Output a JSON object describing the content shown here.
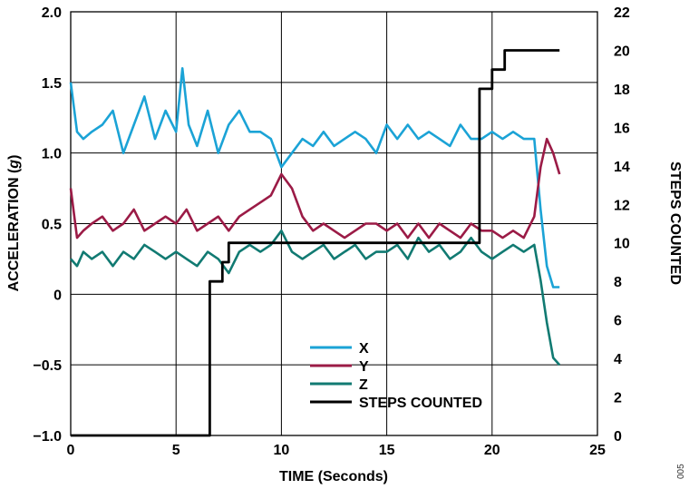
{
  "chart_data": {
    "type": "line",
    "xlabel": "TIME (Seconds)",
    "ylabel_left": [
      "ACCELERATION (",
      "g",
      ")"
    ],
    "ylabel_right": "STEPS COUNTED",
    "xlim": [
      0,
      25
    ],
    "ylim_left": [
      -1.0,
      2.0
    ],
    "ylim_right": [
      0,
      22
    ],
    "x_ticks": [
      "0",
      "5",
      "10",
      "15",
      "20",
      "25"
    ],
    "y_left_ticks": [
      "2.0",
      "1.5",
      "1.0",
      "0.5",
      "0",
      "−0.5",
      "−1.0"
    ],
    "y_right_ticks": [
      "22",
      "20",
      "18",
      "16",
      "14",
      "12",
      "10",
      "8",
      "6",
      "4",
      "2",
      "0"
    ],
    "grid": true,
    "legend_position": "bottom-center",
    "figure_id": "005",
    "series": [
      {
        "name": "X",
        "axis": "left",
        "color": "#1ba3d6",
        "x": [
          0,
          0.3,
          0.6,
          1.0,
          1.5,
          2.0,
          2.5,
          3.0,
          3.5,
          4.0,
          4.5,
          5.0,
          5.3,
          5.6,
          6.0,
          6.5,
          7.0,
          7.5,
          8.0,
          8.5,
          9.0,
          9.5,
          10.0,
          10.5,
          11.0,
          11.5,
          12.0,
          12.5,
          13.0,
          13.5,
          14.0,
          14.5,
          15.0,
          15.5,
          16.0,
          16.5,
          17.0,
          17.5,
          18.0,
          18.5,
          19.0,
          19.5,
          20.0,
          20.5,
          21.0,
          21.5,
          22.0,
          22.3,
          22.6,
          22.9,
          23.2
        ],
        "y": [
          1.5,
          1.15,
          1.1,
          1.15,
          1.2,
          1.3,
          1.0,
          1.2,
          1.4,
          1.1,
          1.3,
          1.15,
          1.6,
          1.2,
          1.05,
          1.3,
          1.0,
          1.2,
          1.3,
          1.15,
          1.15,
          1.1,
          0.9,
          1.0,
          1.1,
          1.05,
          1.15,
          1.05,
          1.1,
          1.15,
          1.1,
          1.0,
          1.2,
          1.1,
          1.2,
          1.1,
          1.15,
          1.1,
          1.05,
          1.2,
          1.1,
          1.1,
          1.15,
          1.1,
          1.15,
          1.1,
          1.1,
          0.6,
          0.2,
          0.05,
          0.05
        ]
      },
      {
        "name": "Y",
        "axis": "left",
        "color": "#9b1b46",
        "x": [
          0,
          0.3,
          0.6,
          1.0,
          1.5,
          2.0,
          2.5,
          3.0,
          3.5,
          4.0,
          4.5,
          5.0,
          5.5,
          6.0,
          6.5,
          7.0,
          7.5,
          8.0,
          8.5,
          9.0,
          9.5,
          10.0,
          10.5,
          11.0,
          11.5,
          12.0,
          12.5,
          13.0,
          13.5,
          14.0,
          14.5,
          15.0,
          15.5,
          16.0,
          16.5,
          17.0,
          17.5,
          18.0,
          18.5,
          19.0,
          19.5,
          20.0,
          20.5,
          21.0,
          21.5,
          22.0,
          22.3,
          22.6,
          22.9,
          23.2
        ],
        "y": [
          0.75,
          0.4,
          0.45,
          0.5,
          0.55,
          0.45,
          0.5,
          0.6,
          0.45,
          0.5,
          0.55,
          0.5,
          0.6,
          0.45,
          0.5,
          0.55,
          0.45,
          0.55,
          0.6,
          0.65,
          0.7,
          0.85,
          0.75,
          0.55,
          0.45,
          0.5,
          0.45,
          0.4,
          0.45,
          0.5,
          0.5,
          0.45,
          0.5,
          0.4,
          0.5,
          0.4,
          0.5,
          0.45,
          0.4,
          0.5,
          0.45,
          0.45,
          0.4,
          0.45,
          0.4,
          0.55,
          0.9,
          1.1,
          1.0,
          0.85
        ]
      },
      {
        "name": "Z",
        "axis": "left",
        "color": "#117a72",
        "x": [
          0,
          0.3,
          0.6,
          1.0,
          1.5,
          2.0,
          2.5,
          3.0,
          3.5,
          4.0,
          4.5,
          5.0,
          5.5,
          6.0,
          6.5,
          7.0,
          7.5,
          8.0,
          8.5,
          9.0,
          9.5,
          10.0,
          10.5,
          11.0,
          11.5,
          12.0,
          12.5,
          13.0,
          13.5,
          14.0,
          14.5,
          15.0,
          15.5,
          16.0,
          16.5,
          17.0,
          17.5,
          18.0,
          18.5,
          19.0,
          19.5,
          20.0,
          20.5,
          21.0,
          21.5,
          22.0,
          22.3,
          22.6,
          22.9,
          23.2
        ],
        "y": [
          0.25,
          0.2,
          0.3,
          0.25,
          0.3,
          0.2,
          0.3,
          0.25,
          0.35,
          0.3,
          0.25,
          0.3,
          0.25,
          0.2,
          0.3,
          0.25,
          0.15,
          0.3,
          0.35,
          0.3,
          0.35,
          0.45,
          0.3,
          0.25,
          0.3,
          0.35,
          0.25,
          0.3,
          0.35,
          0.25,
          0.3,
          0.3,
          0.35,
          0.25,
          0.4,
          0.3,
          0.35,
          0.25,
          0.3,
          0.4,
          0.3,
          0.25,
          0.3,
          0.35,
          0.3,
          0.35,
          0.1,
          -0.2,
          -0.45,
          -0.5
        ]
      },
      {
        "name": "STEPS COUNTED",
        "axis": "right",
        "color": "#000000",
        "step": true,
        "x": [
          0,
          6.6,
          6.6,
          7.2,
          7.2,
          7.5,
          7.5,
          7.6,
          7.6,
          19.4,
          19.4,
          20.0,
          20.0,
          20.2,
          20.2,
          20.6,
          20.6,
          23.2
        ],
        "y": [
          0,
          0,
          8,
          8,
          9,
          9,
          10,
          10,
          10,
          10,
          18,
          18,
          19,
          19,
          19,
          19,
          20,
          20
        ]
      }
    ]
  }
}
